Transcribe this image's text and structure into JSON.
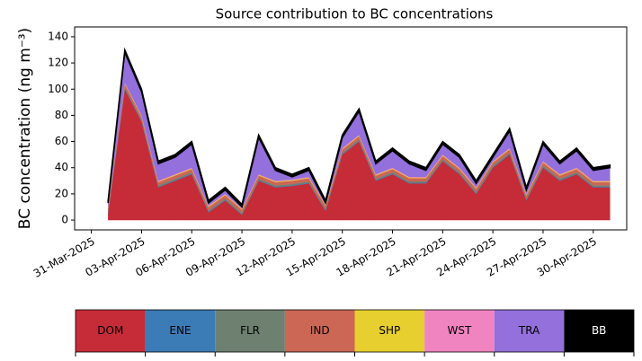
{
  "chart_data": {
    "type": "stacked-area",
    "title": "Source contribution to BC concentrations",
    "ylabel": "BC concentration (ng m⁻³)",
    "x": [
      "2025-04-01",
      "2025-04-02",
      "2025-04-03",
      "2025-04-04",
      "2025-04-05",
      "2025-04-06",
      "2025-04-07",
      "2025-04-08",
      "2025-04-09",
      "2025-04-10",
      "2025-04-11",
      "2025-04-12",
      "2025-04-13",
      "2025-04-14",
      "2025-04-15",
      "2025-04-16",
      "2025-04-17",
      "2025-04-18",
      "2025-04-19",
      "2025-04-20",
      "2025-04-21",
      "2025-04-22",
      "2025-04-23",
      "2025-04-24",
      "2025-04-25",
      "2025-04-26",
      "2025-04-27",
      "2025-04-28",
      "2025-04-29",
      "2025-04-30",
      "2025-05-01"
    ],
    "xlim": [
      "2025-03-30",
      "2025-05-02"
    ],
    "xticks": [
      {
        "value": "2025-03-31",
        "label": "31-Mar-2025"
      },
      {
        "value": "2025-04-03",
        "label": "03-Apr-2025"
      },
      {
        "value": "2025-04-06",
        "label": "06-Apr-2025"
      },
      {
        "value": "2025-04-09",
        "label": "09-Apr-2025"
      },
      {
        "value": "2025-04-12",
        "label": "12-Apr-2025"
      },
      {
        "value": "2025-04-15",
        "label": "15-Apr-2025"
      },
      {
        "value": "2025-04-18",
        "label": "18-Apr-2025"
      },
      {
        "value": "2025-04-21",
        "label": "21-Apr-2025"
      },
      {
        "value": "2025-04-24",
        "label": "24-Apr-2025"
      },
      {
        "value": "2025-04-27",
        "label": "27-Apr-2025"
      },
      {
        "value": "2025-04-30",
        "label": "30-Apr-2025"
      }
    ],
    "ylim": [
      -7.5,
      147.5
    ],
    "yticks": [
      0,
      20,
      40,
      60,
      80,
      100,
      120,
      140
    ],
    "series": [
      {
        "name": "DOM",
        "color": "#c62b38",
        "values": [
          5,
          100,
          75,
          25,
          30,
          35,
          6,
          15,
          4,
          30,
          25,
          26,
          28,
          7,
          50,
          60,
          30,
          35,
          28,
          28,
          45,
          35,
          20,
          40,
          50,
          15,
          40,
          30,
          35,
          25,
          25
        ]
      },
      {
        "name": "ENE",
        "color": "#3b7bb6",
        "values": [
          0.5,
          0.5,
          0.5,
          0.5,
          0.5,
          0.5,
          0.5,
          0.5,
          0.5,
          0.5,
          0.5,
          0.5,
          0.5,
          0.5,
          0.5,
          0.5,
          0.5,
          0.5,
          0.5,
          0.5,
          0.5,
          0.5,
          0.5,
          0.5,
          0.5,
          0.5,
          0.5,
          0.5,
          0.5,
          0.5,
          0.5
        ]
      },
      {
        "name": "FLR",
        "color": "#6e8070",
        "values": [
          1,
          1,
          1,
          1,
          1,
          1,
          1,
          1,
          1,
          1,
          1,
          1,
          1,
          1,
          1,
          1,
          1,
          1,
          1,
          1,
          1,
          1,
          1,
          1,
          1,
          1,
          1,
          1,
          1,
          1,
          1
        ]
      },
      {
        "name": "IND",
        "color": "#cc6655",
        "values": [
          2.5,
          2.5,
          2.5,
          2.5,
          2.5,
          2.5,
          2.5,
          2.5,
          2.5,
          2.5,
          2.5,
          2.5,
          2.5,
          2.5,
          2.5,
          2.5,
          2.5,
          2.5,
          2.5,
          2.5,
          2.5,
          2.5,
          2.5,
          2.5,
          2.5,
          2.5,
          2.5,
          2.5,
          2.5,
          2.5,
          2.5
        ]
      },
      {
        "name": "SHP",
        "color": "#e6cf2e",
        "values": [
          0.5,
          0.5,
          0.5,
          0.5,
          0.5,
          0.5,
          0.5,
          0.5,
          0.5,
          0.5,
          0.5,
          0.5,
          0.5,
          0.5,
          0.5,
          0.5,
          0.5,
          0.5,
          0.5,
          0.5,
          0.5,
          0.5,
          0.5,
          0.5,
          0.5,
          0.5,
          0.5,
          0.5,
          0.5,
          0.5,
          0.5
        ]
      },
      {
        "name": "WST",
        "color": "#f084c0",
        "values": [
          0.5,
          0.5,
          0.5,
          0.5,
          0.5,
          0.5,
          0.5,
          0.5,
          0.5,
          0.5,
          0.5,
          0.5,
          0.5,
          0.5,
          0.5,
          0.5,
          0.5,
          0.5,
          0.5,
          0.5,
          0.5,
          0.5,
          0.5,
          0.5,
          0.5,
          0.5,
          0.5,
          0.5,
          0.5,
          0.5,
          0.5
        ]
      },
      {
        "name": "TRA",
        "color": "#9370db",
        "values": [
          3,
          23,
          18,
          13,
          13,
          18,
          2,
          3,
          1,
          28,
          8,
          2,
          5,
          1,
          8,
          18,
          8,
          13,
          10,
          5,
          8,
          8,
          3,
          3,
          13,
          3,
          13,
          8,
          13,
          8,
          10
        ]
      },
      {
        "name": "BB",
        "color": "#000000",
        "values": [
          2,
          2,
          2,
          2,
          2,
          2,
          2,
          2,
          2,
          2,
          2,
          2,
          2,
          2,
          2,
          2,
          2,
          2,
          2,
          2,
          2,
          2,
          2,
          2,
          2,
          2,
          2,
          2,
          2,
          2,
          2
        ]
      }
    ]
  }
}
